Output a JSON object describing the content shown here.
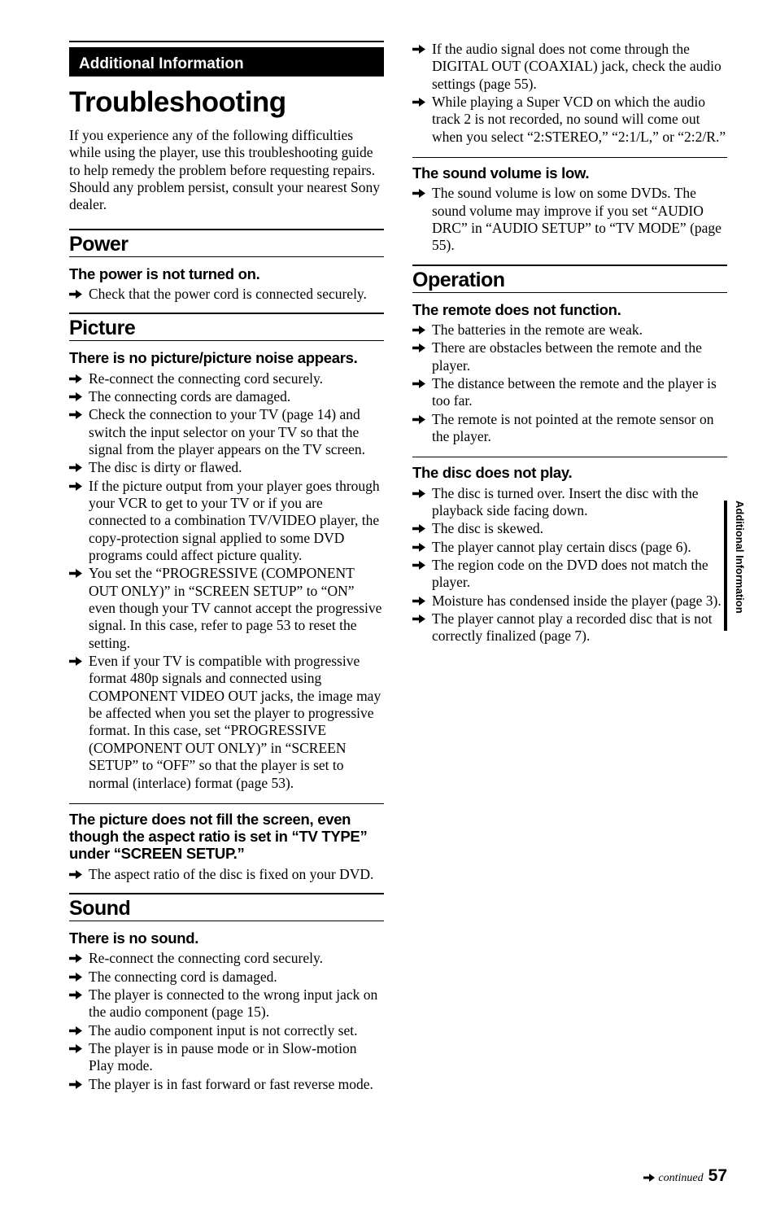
{
  "banner": "Additional Information",
  "h1": "Troubleshooting",
  "intro": "If you experience any of the following difficulties while using the player, use this troubleshooting guide to help remedy the problem before requesting repairs. Should any problem persist, consult your nearest Sony dealer.",
  "power": {
    "title": "Power",
    "h3": "The power is not turned on.",
    "items": [
      "Check that the power cord is connected securely."
    ]
  },
  "picture": {
    "title": "Picture",
    "s1": {
      "h3": "There is no picture/picture noise appears.",
      "items": [
        "Re-connect the connecting cord securely.",
        "The connecting cords are damaged.",
        "Check the connection to your TV (page 14) and switch the input selector on your TV so that the signal from the player appears on the TV screen.",
        "The disc is dirty or flawed.",
        "If the picture output from your player goes through your VCR to get to your TV or if you are connected to a combination TV/VIDEO player, the copy-protection signal applied to some DVD programs could affect picture quality.",
        "You set the “PROGRESSIVE (COMPONENT OUT ONLY)” in “SCREEN SETUP” to “ON” even though your TV cannot accept the progressive signal. In this case, refer to page 53 to reset the setting.",
        "Even if your TV is compatible with progressive format 480p signals and connected using COMPONENT VIDEO OUT jacks, the image may be affected when you set the player to progressive format. In this case, set “PROGRESSIVE (COMPONENT OUT ONLY)” in “SCREEN SETUP” to “OFF” so that the player is set to normal (interlace) format (page 53)."
      ]
    },
    "s2": {
      "h3": "The picture does not fill the screen, even though the aspect ratio is set in “TV TYPE” under “SCREEN SETUP.”",
      "items": [
        "The aspect ratio of the disc is fixed on your DVD."
      ]
    }
  },
  "sound": {
    "title": "Sound",
    "s1": {
      "h3": "There is no sound.",
      "items": [
        "Re-connect the connecting cord securely.",
        "The connecting cord is damaged.",
        "The player is connected to the wrong input jack on the audio component (page 15).",
        "The audio component input is not correctly set.",
        "The player is in pause mode or in Slow-motion Play mode.",
        "The player is in fast forward or fast reverse mode.",
        "If the audio signal does not come through the DIGITAL OUT (COAXIAL) jack, check the audio settings (page 55).",
        "While playing a Super VCD on which the audio track 2 is not recorded, no sound will come out when you select “2:STEREO,” “2:1/L,” or “2:2/R.”"
      ]
    },
    "s2": {
      "h3": "The sound volume is low.",
      "items": [
        "The sound volume is low on some DVDs. The sound volume may improve if you set “AUDIO DRC” in “AUDIO SETUP” to “TV MODE” (page 55)."
      ]
    }
  },
  "operation": {
    "title": "Operation",
    "s1": {
      "h3": "The remote does not function.",
      "items": [
        "The batteries in the remote are weak.",
        "There are obstacles between the remote and the player.",
        "The distance between the remote and the player is too far.",
        "The remote is not pointed at the remote sensor on the player."
      ]
    },
    "s2": {
      "h3": "The disc does not play.",
      "items": [
        "The disc is turned over.\nInsert the disc with the playback side facing down.",
        "The disc is skewed.",
        "The player cannot play certain discs (page 6).",
        "The region code on the DVD does not match the player.",
        "Moisture has condensed inside the player (page 3).",
        "The player cannot play a recorded disc that is not correctly finalized (page 7)."
      ]
    }
  },
  "sidetab": "Additional Information",
  "footer": {
    "continued": "continued",
    "page": "57"
  }
}
